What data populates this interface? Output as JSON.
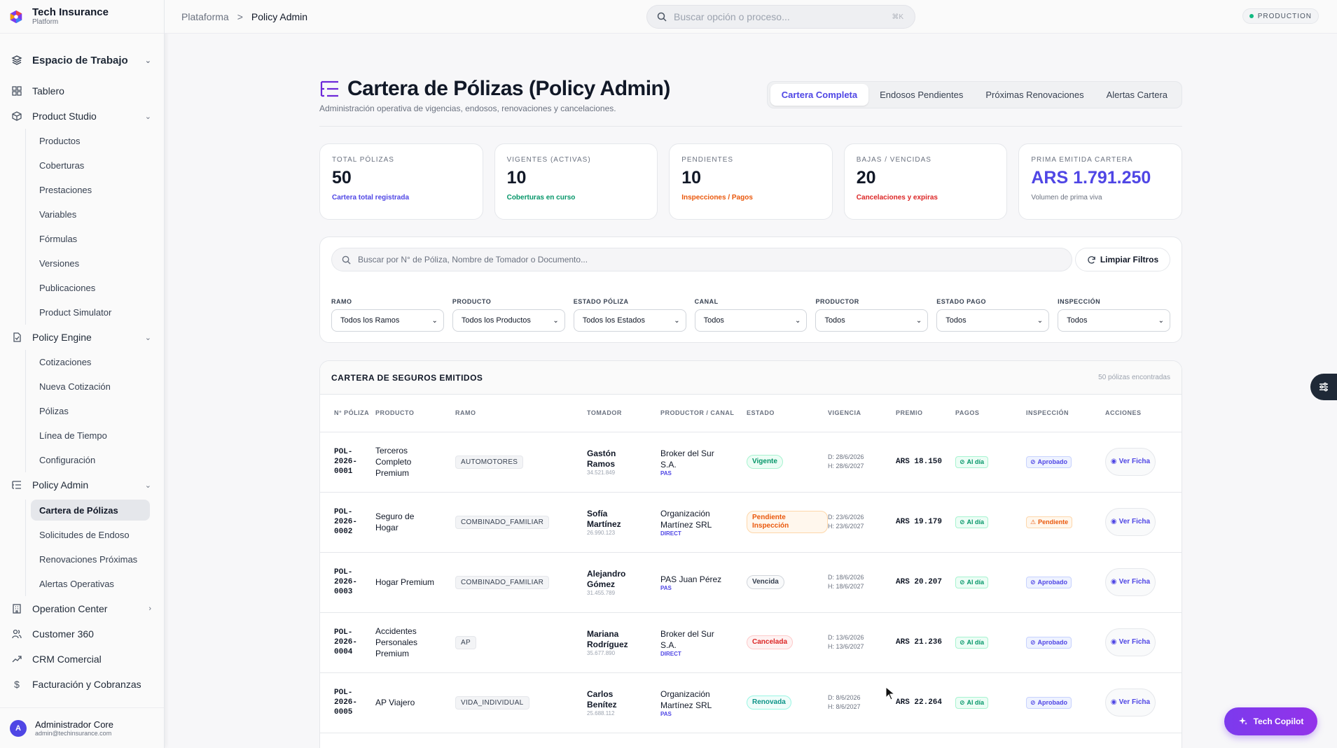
{
  "brand": {
    "title": "Tech Insurance",
    "subtitle": "Platform"
  },
  "sidebar": {
    "workspace": "Espacio de Trabajo",
    "dashboard": "Tablero",
    "product_studio": {
      "label": "Product Studio",
      "items": [
        "Productos",
        "Coberturas",
        "Prestaciones",
        "Variables",
        "Fórmulas",
        "Versiones",
        "Publicaciones",
        "Product Simulator"
      ]
    },
    "policy_engine": {
      "label": "Policy Engine",
      "items": [
        "Cotizaciones",
        "Nueva Cotización",
        "Pólizas",
        "Línea de Tiempo",
        "Configuración"
      ]
    },
    "policy_admin": {
      "label": "Policy Admin",
      "active": "Cartera de Pólizas",
      "items": [
        "Solicitudes de Endoso",
        "Renovaciones Próximas",
        "Alertas Operativas"
      ]
    },
    "operation_center": "Operation Center",
    "customer_360": "Customer 360",
    "crm": "CRM Comercial",
    "billing": "Facturación y Cobranzas",
    "user": {
      "initial": "A",
      "name": "Administrador Core",
      "email": "admin@techinsurance.com"
    }
  },
  "topbar": {
    "crumb_root": "Plataforma",
    "crumb_sep": ">",
    "crumb_current": "Policy Admin",
    "search_placeholder": "Buscar opción o proceso...",
    "shortcut": "⌘K",
    "env": "PRODUCTION"
  },
  "page": {
    "title": "Cartera de Pólizas (Policy Admin)",
    "subtitle": "Administración operativa de vigencias, endosos, renovaciones y cancelaciones.",
    "tabs": [
      "Cartera Completa",
      "Endosos Pendientes",
      "Próximas Renovaciones",
      "Alertas Cartera"
    ]
  },
  "stats": [
    {
      "label": "TOTAL PÓLIZAS",
      "value": "50",
      "note": "Cartera total registrada",
      "note_color": "#4f46e5"
    },
    {
      "label": "VIGENTES (ACTIVAS)",
      "value": "10",
      "note": "Coberturas en curso",
      "note_color": "#059669"
    },
    {
      "label": "PENDIENTES",
      "value": "10",
      "note": "Inspecciones / Pagos",
      "note_color": "#ea580c"
    },
    {
      "label": "BAJAS / VENCIDAS",
      "value": "20",
      "note": "Cancelaciones y expiras",
      "note_color": "#dc2626"
    },
    {
      "label": "PRIMA EMITIDA CARTERA",
      "value": "ARS 1.791.250",
      "note": "Volumen de prima viva",
      "note_color": "#6b7280"
    }
  ],
  "filters": {
    "search_placeholder": "Buscar por N° de Póliza, Nombre de Tomador o Documento...",
    "clear_label": "Limpiar Filtros",
    "selects": [
      {
        "label": "RAMO",
        "value": "Todos los Ramos"
      },
      {
        "label": "PRODUCTO",
        "value": "Todos los Productos"
      },
      {
        "label": "ESTADO PÓLIZA",
        "value": "Todos los Estados"
      },
      {
        "label": "CANAL",
        "value": "Todos"
      },
      {
        "label": "PRODUCTOR",
        "value": "Todos"
      },
      {
        "label": "ESTADO PAGO",
        "value": "Todos"
      },
      {
        "label": "INSPECCIÓN",
        "value": "Todos"
      }
    ]
  },
  "table": {
    "title": "CARTERA DE SEGUROS EMITIDOS",
    "count": "50 pólizas encontradas",
    "columns": [
      "N° PÓLIZA",
      "PRODUCTO",
      "RAMO",
      "TOMADOR",
      "PRODUCTOR / CANAL",
      "ESTADO",
      "VIGENCIA",
      "PREMIO",
      "PAGOS",
      "INSPECCIÓN",
      "ACCIONES"
    ],
    "action_label": "Ver Ficha",
    "rows": [
      {
        "poliza": "POL-2026-0001",
        "producto": "Terceros Completo Premium",
        "ramo": "AUTOMOTORES",
        "tomador": "Gastón Ramos",
        "doc": "34.521.849",
        "productor": "Broker del Sur S.A.",
        "canal": "PAS",
        "estado": "Vigente",
        "estado_style": "green",
        "desde": "D: 28/6/2026",
        "hasta": "H: 28/6/2027",
        "premio": "ARS 18.150",
        "pago": "Al día",
        "inspeccion": "Aprobado",
        "insp_style": "ok"
      },
      {
        "poliza": "POL-2026-0002",
        "producto": "Seguro de Hogar",
        "ramo": "COMBINADO_FAMILIAR",
        "tomador": "Sofía Martínez",
        "doc": "26.990.123",
        "productor": "Organización Martínez SRL",
        "canal": "DIRECT",
        "estado": "Pendiente Inspección",
        "estado_style": "orange",
        "desde": "D: 23/6/2026",
        "hasta": "H: 23/6/2027",
        "premio": "ARS 19.179",
        "pago": "Al día",
        "inspeccion": "Pendiente",
        "insp_style": "pend"
      },
      {
        "poliza": "POL-2026-0003",
        "producto": "Hogar Premium",
        "ramo": "COMBINADO_FAMILIAR",
        "tomador": "Alejandro Gómez",
        "doc": "31.455.789",
        "productor": "PAS Juan Pérez",
        "canal": "PAS",
        "estado": "Vencida",
        "estado_style": "gray",
        "desde": "D: 18/6/2026",
        "hasta": "H: 18/6/2027",
        "premio": "ARS 20.207",
        "pago": "Al día",
        "inspeccion": "Aprobado",
        "insp_style": "ok"
      },
      {
        "poliza": "POL-2026-0004",
        "producto": "Accidentes Personales Premium",
        "ramo": "AP",
        "tomador": "Mariana Rodríguez",
        "doc": "35.677.890",
        "productor": "Broker del Sur S.A.",
        "canal": "DIRECT",
        "estado": "Cancelada",
        "estado_style": "red",
        "desde": "D: 13/6/2026",
        "hasta": "H: 13/6/2027",
        "premio": "ARS 21.236",
        "pago": "Al día",
        "inspeccion": "Aprobado",
        "insp_style": "ok"
      },
      {
        "poliza": "POL-2026-0005",
        "producto": "AP Viajero",
        "ramo": "VIDA_INDIVIDUAL",
        "tomador": "Carlos Benítez",
        "doc": "25.688.112",
        "productor": "Organización Martínez SRL",
        "canal": "PAS",
        "estado": "Renovada",
        "estado_style": "teal",
        "desde": "D: 8/6/2026",
        "hasta": "H: 8/6/2027",
        "premio": "ARS 22.264",
        "pago": "Al día",
        "inspeccion": "Aprobado",
        "insp_style": "ok"
      }
    ]
  },
  "copilot": "Tech Copilot",
  "colors": {
    "accent": "#4f46e5",
    "copilot": "#7c3aed"
  }
}
